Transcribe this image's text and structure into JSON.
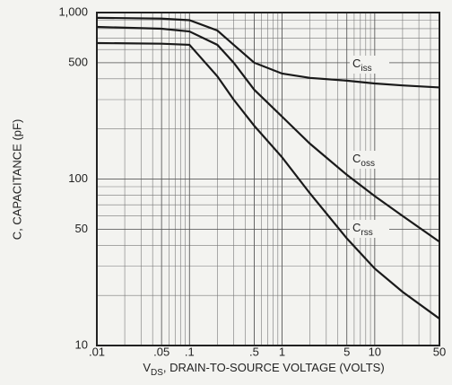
{
  "chart_data": {
    "type": "line",
    "ylabel": "C, CAPACITANCE (pF)",
    "xlabel": {
      "main": "V",
      "sub": "DS",
      "rest": ", DRAIN-TO-SOURCE VOLTAGE (VOLTS)"
    },
    "xscale": "log",
    "yscale": "log",
    "grid": true,
    "x": [
      0.01,
      0.05,
      0.1,
      0.2,
      0.3,
      0.5,
      1,
      2,
      5,
      10,
      20,
      50
    ],
    "series": [
      {
        "name": "Ciss",
        "color": "#1a1a1a",
        "values": [
          930,
          920,
          900,
          780,
          640,
          500,
          430,
          405,
          390,
          375,
          365,
          355
        ]
      },
      {
        "name": "Coss",
        "color": "#1a1a1a",
        "values": [
          820,
          800,
          770,
          640,
          500,
          344,
          237,
          163,
          106,
          79,
          60,
          42
        ]
      },
      {
        "name": "Crss",
        "color": "#1a1a1a",
        "values": [
          656,
          650,
          640,
          414,
          300,
          209,
          135,
          82,
          44,
          29,
          21,
          14.5
        ]
      }
    ],
    "xlim": [
      0.01,
      50
    ],
    "ylim": [
      10,
      1000
    ],
    "xticks": [
      {
        "value": 0.01,
        "label": ".01"
      },
      {
        "value": 0.05,
        "label": ".05"
      },
      {
        "value": 0.1,
        "label": ".1"
      },
      {
        "value": 0.5,
        "label": ".5"
      },
      1,
      5,
      10,
      50
    ],
    "yticks": [
      10,
      50,
      100,
      500,
      {
        "value": 1000,
        "label": "1,000"
      }
    ]
  }
}
